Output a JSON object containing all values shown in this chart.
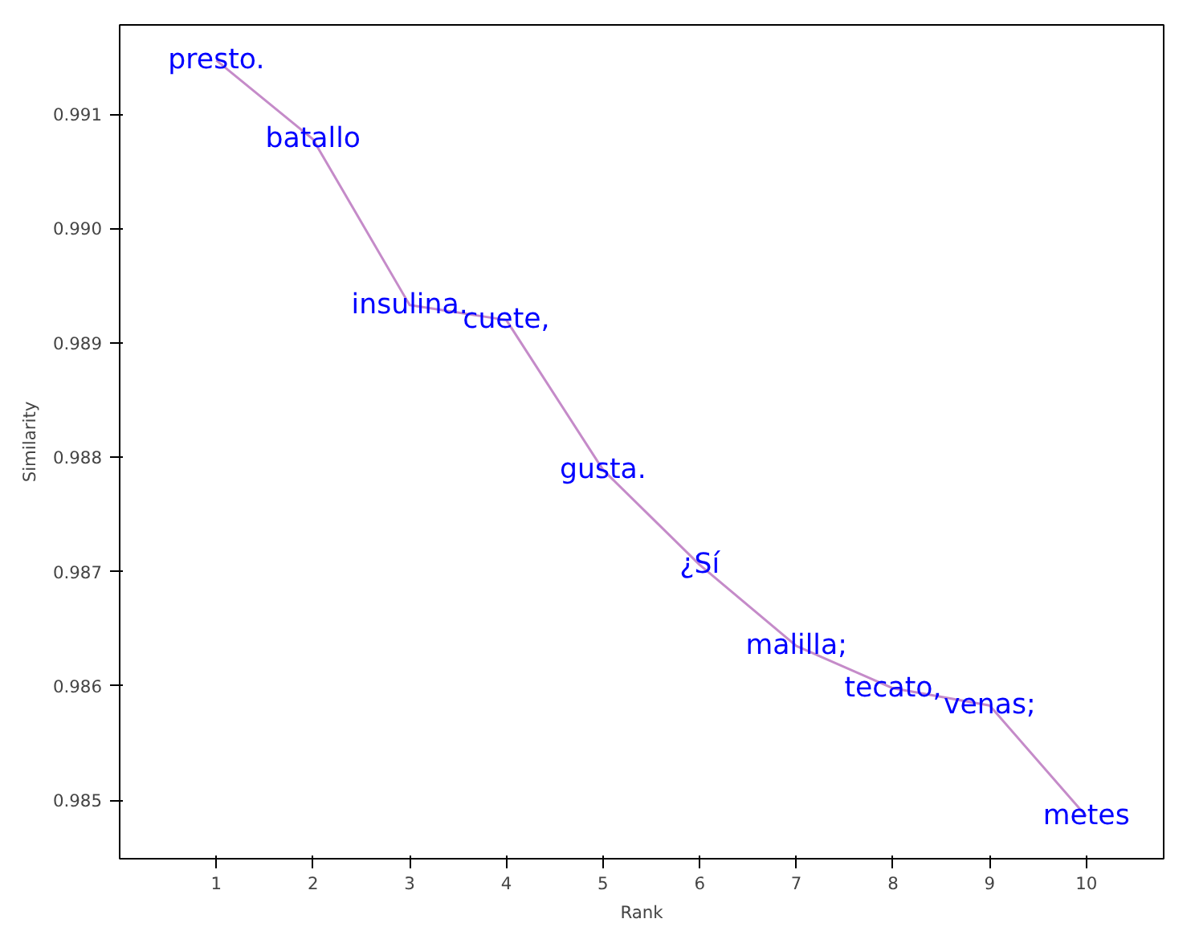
{
  "chart_data": {
    "type": "line",
    "xlabel": "Rank",
    "ylabel": "Similarity",
    "x": [
      1,
      2,
      3,
      4,
      5,
      6,
      7,
      8,
      9,
      10
    ],
    "series": [
      {
        "color": "#c58bc9",
        "values": [
          0.99147,
          0.99078,
          0.98933,
          0.9892,
          0.98789,
          0.98706,
          0.98635,
          0.98598,
          0.98583,
          0.98486
        ]
      }
    ],
    "xlim": [
      0,
      10.8
    ],
    "ylim": [
      0.98449,
      0.99178
    ],
    "xticks": [
      1,
      2,
      3,
      4,
      5,
      6,
      7,
      8,
      9,
      10
    ],
    "yticks": [
      {
        "value": 0.985,
        "label": "0.985"
      },
      {
        "value": 0.986,
        "label": "0.986"
      },
      {
        "value": 0.987,
        "label": "0.987"
      },
      {
        "value": 0.988,
        "label": "0.988"
      },
      {
        "value": 0.989,
        "label": "0.989"
      },
      {
        "value": 0.99,
        "label": "0.990"
      },
      {
        "value": 0.991,
        "label": "0.991"
      }
    ],
    "grid": false,
    "marker": "none",
    "line_style": "solid",
    "annotations": [
      {
        "text": "presto.",
        "x": 1,
        "y": 0.99147
      },
      {
        "text": "batallo",
        "x": 2,
        "y": 0.99078
      },
      {
        "text": "insulina.",
        "x": 3,
        "y": 0.98933
      },
      {
        "text": "cuete,",
        "x": 4,
        "y": 0.9892
      },
      {
        "text": "gusta.",
        "x": 5,
        "y": 0.98789
      },
      {
        "text": "¿Sí",
        "x": 6,
        "y": 0.98706
      },
      {
        "text": "malilla;",
        "x": 7,
        "y": 0.98635
      },
      {
        "text": "tecato,",
        "x": 8,
        "y": 0.98598
      },
      {
        "text": "venas;",
        "x": 9,
        "y": 0.98583
      },
      {
        "text": "metes",
        "x": 10,
        "y": 0.98486
      }
    ]
  }
}
